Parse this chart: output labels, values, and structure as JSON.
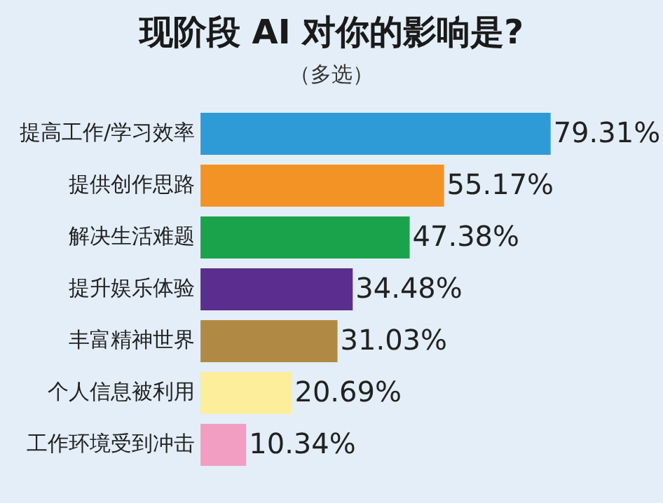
{
  "chart_data": {
    "type": "bar",
    "orientation": "horizontal",
    "title": "现阶段 AI 对你的影响是?",
    "subtitle": "（多选）",
    "categories": [
      "提高工作/学习效率",
      "提供创作思路",
      "解决生活难题",
      "提升娱乐体验",
      "丰富精神世界",
      "个人信息被利用",
      "工作环境受到冲击"
    ],
    "values": [
      79.31,
      55.17,
      47.38,
      34.48,
      31.03,
      20.69,
      10.34
    ],
    "colors": [
      "#2e9bd6",
      "#f39325",
      "#1aa34a",
      "#5b2d8e",
      "#b08a45",
      "#fcee9a",
      "#f19ec2"
    ],
    "value_labels": [
      "79.31%",
      "55.17%",
      "47.38%",
      "34.48%",
      "31.03%",
      "20.69%",
      "10.34%"
    ],
    "grid": false,
    "legend": false
  }
}
